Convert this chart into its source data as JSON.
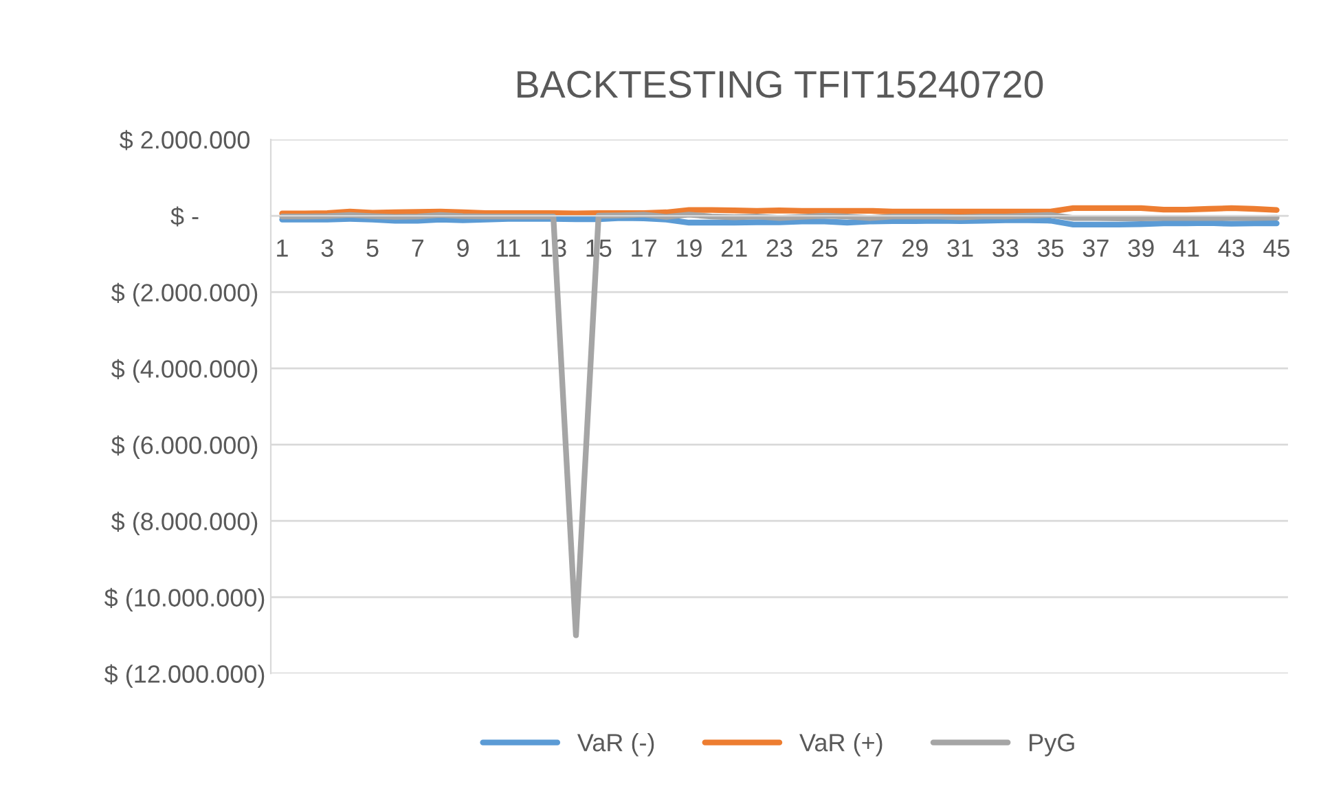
{
  "chart_data": {
    "type": "line",
    "title": "BACKTESTING TFIT15240720",
    "categories": [
      "1",
      null,
      "3",
      null,
      "5",
      null,
      "7",
      null,
      "9",
      null,
      "11",
      null,
      "13",
      null,
      "15",
      null,
      "17",
      null,
      "19",
      null,
      "21",
      null,
      "23",
      null,
      "25",
      null,
      "27",
      null,
      "29",
      null,
      "31",
      null,
      "33",
      null,
      "35",
      null,
      "37",
      null,
      "39",
      null,
      "41",
      null,
      "43",
      null,
      "45"
    ],
    "series": [
      {
        "name": "VaR (-)",
        "color": "#5b9bd5",
        "values": [
          -100000,
          -100000,
          -100000,
          -80000,
          -100000,
          -130000,
          -130000,
          -100000,
          -120000,
          -100000,
          -80000,
          -80000,
          -80000,
          -90000,
          -90000,
          -60000,
          -70000,
          -100000,
          -180000,
          -180000,
          -180000,
          -170000,
          -170000,
          -150000,
          -150000,
          -180000,
          -150000,
          -140000,
          -140000,
          -130000,
          -140000,
          -130000,
          -120000,
          -120000,
          -130000,
          -230000,
          -230000,
          -230000,
          -220000,
          -200000,
          -200000,
          -190000,
          -210000,
          -200000,
          -200000
        ]
      },
      {
        "name": "VaR (+)",
        "color": "#ed7d31",
        "values": [
          60000,
          60000,
          70000,
          110000,
          80000,
          90000,
          100000,
          110000,
          90000,
          70000,
          70000,
          70000,
          70000,
          60000,
          70000,
          70000,
          70000,
          90000,
          150000,
          150000,
          140000,
          130000,
          140000,
          130000,
          130000,
          130000,
          130000,
          110000,
          110000,
          110000,
          110000,
          110000,
          110000,
          110000,
          110000,
          200000,
          200000,
          200000,
          200000,
          160000,
          160000,
          180000,
          200000,
          180000,
          150000
        ]
      },
      {
        "name": "PyG",
        "color": "#a5a5a5",
        "values": [
          -20000,
          -20000,
          -10000,
          20000,
          -10000,
          -30000,
          -20000,
          20000,
          -10000,
          -20000,
          -20000,
          -20000,
          -20000,
          -11000000,
          0,
          10000,
          30000,
          -30000,
          30000,
          -20000,
          -40000,
          -20000,
          -60000,
          -30000,
          0,
          -20000,
          -60000,
          -20000,
          -20000,
          -20000,
          -40000,
          -20000,
          -20000,
          0,
          20000,
          -60000,
          -60000,
          -70000,
          -70000,
          -60000,
          -60000,
          -60000,
          -60000,
          -60000,
          -50000
        ]
      }
    ],
    "ylim": [
      -12000000,
      2000000
    ],
    "yticks": [
      {
        "value": 2000000,
        "label": "$ 2.000.000"
      },
      {
        "value": 0,
        "label": "$ -"
      },
      {
        "value": -2000000,
        "label": "$ (2.000.000)"
      },
      {
        "value": -4000000,
        "label": "$ (4.000.000)"
      },
      {
        "value": -6000000,
        "label": "$ (6.000.000)"
      },
      {
        "value": -8000000,
        "label": "$ (8.000.000)"
      },
      {
        "value": -10000000,
        "label": "$ (10.000.000)"
      },
      {
        "value": -12000000,
        "label": "$ (12.000.000)"
      }
    ],
    "grid": "y",
    "legend": "bottom",
    "line_style": "solid",
    "marker": "none"
  }
}
